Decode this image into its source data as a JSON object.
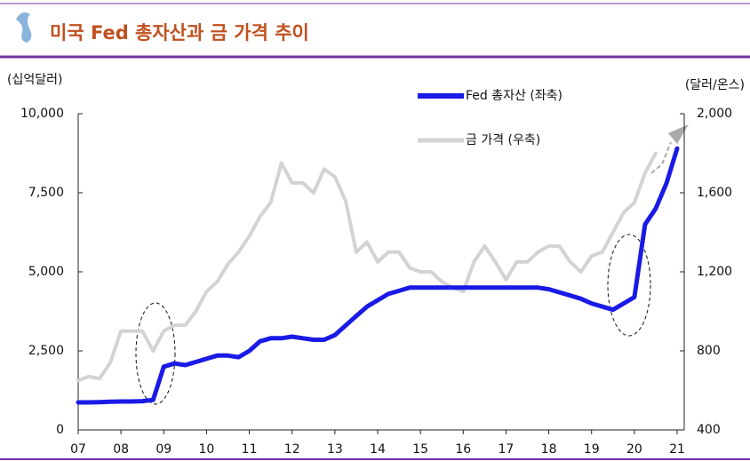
{
  "chart_data": {
    "type": "line",
    "title": "미국 Fed 총자산과 금 가격 추이",
    "y_label": "(십억달러)",
    "y2_label": "(달러/온스)",
    "x": [
      2007,
      2007.25,
      2007.5,
      2007.75,
      2008,
      2008.25,
      2008.5,
      2008.75,
      2009,
      2009.25,
      2009.5,
      2009.75,
      2010,
      2010.25,
      2010.5,
      2010.75,
      2011,
      2011.25,
      2011.5,
      2011.75,
      2012,
      2012.25,
      2012.5,
      2012.75,
      2013,
      2013.25,
      2013.5,
      2013.75,
      2014,
      2014.25,
      2014.5,
      2014.75,
      2015,
      2015.25,
      2015.5,
      2015.75,
      2016,
      2016.25,
      2016.5,
      2016.75,
      2017,
      2017.25,
      2017.5,
      2017.75,
      2018,
      2018.25,
      2018.5,
      2018.75,
      2019,
      2019.25,
      2019.5,
      2019.75,
      2020,
      2020.25,
      2020.5,
      2020.75,
      2021
    ],
    "series": [
      {
        "name": "Fed 총자산 (좌축)",
        "color": "#1a1ae6",
        "values": [
          870,
          870,
          880,
          890,
          900,
          900,
          910,
          950,
          2000,
          2100,
          2050,
          2150,
          2250,
          2350,
          2350,
          2300,
          2500,
          2800,
          2900,
          2900,
          2950,
          2900,
          2850,
          2850,
          3000,
          3300,
          3600,
          3900,
          4100,
          4300,
          4400,
          4500,
          4500,
          4500,
          4500,
          4500,
          4500,
          4500,
          4500,
          4500,
          4500,
          4500,
          4500,
          4500,
          4450,
          4350,
          4250,
          4150,
          4000,
          3900,
          3800,
          4000,
          4200,
          6500,
          7000,
          7800,
          8900
        ]
      },
      {
        "name": "금 가격 (우축)",
        "color": "#d3d3d3",
        "axis": "y2",
        "values": [
          650,
          670,
          660,
          740,
          900,
          900,
          900,
          800,
          900,
          930,
          930,
          1000,
          1100,
          1150,
          1240,
          1300,
          1380,
          1480,
          1550,
          1750,
          1650,
          1650,
          1600,
          1720,
          1680,
          1560,
          1300,
          1350,
          1250,
          1300,
          1300,
          1220,
          1200,
          1200,
          1150,
          1120,
          1100,
          1250,
          1330,
          1250,
          1160,
          1250,
          1250,
          1300,
          1330,
          1330,
          1250,
          1200,
          1280,
          1300,
          1400,
          1500,
          1550,
          1700,
          1800,
          null,
          null
        ]
      }
    ],
    "xlim": [
      2007,
      2021
    ],
    "xticks": [
      {
        "value": 2007,
        "label": "07"
      },
      {
        "value": 2008,
        "label": "08"
      },
      {
        "value": 2009,
        "label": "09"
      },
      {
        "value": 2010,
        "label": "10"
      },
      {
        "value": 2011,
        "label": "11"
      },
      {
        "value": 2012,
        "label": "12"
      },
      {
        "value": 2013,
        "label": "13"
      },
      {
        "value": 2014,
        "label": "14"
      },
      {
        "value": 2015,
        "label": "15"
      },
      {
        "value": 2016,
        "label": "16"
      },
      {
        "value": 2017,
        "label": "17"
      },
      {
        "value": 2018,
        "label": "18"
      },
      {
        "value": 2019,
        "label": "19"
      },
      {
        "value": 2020,
        "label": "20"
      },
      {
        "value": 2021,
        "label": "21"
      }
    ],
    "ylim": [
      0,
      10000
    ],
    "yticks": [
      0,
      {
        "value": 2500,
        "label": "2,500"
      },
      {
        "value": 5000,
        "label": "5,000"
      },
      {
        "value": 7500,
        "label": "7,500"
      },
      {
        "value": 10000,
        "label": "10,000"
      }
    ],
    "y2lim": [
      400,
      2000
    ],
    "y2ticks": [
      400,
      800,
      {
        "value": 1200,
        "label": "1,200"
      },
      {
        "value": 1600,
        "label": "1,600"
      },
      {
        "value": 2000,
        "label": "2,000"
      }
    ],
    "grid": false
  }
}
